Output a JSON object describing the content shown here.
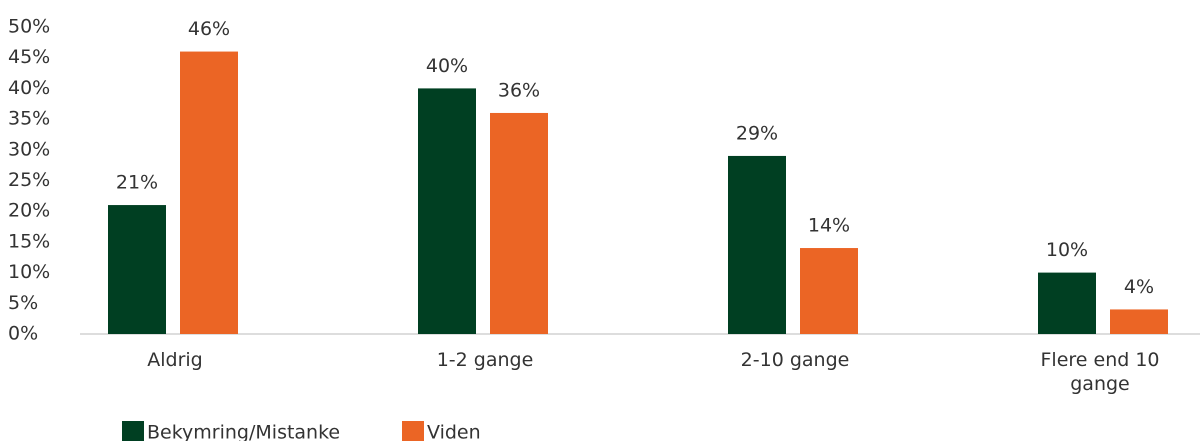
{
  "chart_data": {
    "type": "bar",
    "categories": [
      "Aldrig",
      "1-2 gange",
      "2-10 gange",
      "Flere end 10 gange"
    ],
    "series": [
      {
        "name": "Bekymring/Mistanke",
        "color": "#003f22",
        "values": [
          21,
          40,
          29,
          10
        ],
        "value_labels": [
          "21%",
          "40%",
          "29%",
          "10%"
        ]
      },
      {
        "name": "Viden",
        "color": "#eb6525",
        "values": [
          46,
          36,
          14,
          4
        ],
        "value_labels": [
          "46%",
          "36%",
          "14%",
          "4%"
        ]
      }
    ],
    "ylim": [
      0,
      50
    ],
    "yticks": [
      {
        "value": 0,
        "label": "0%"
      },
      {
        "value": 5,
        "label": "5%"
      },
      {
        "value": 10,
        "label": "10%"
      },
      {
        "value": 15,
        "label": "15%"
      },
      {
        "value": 20,
        "label": "20%"
      },
      {
        "value": 25,
        "label": "25%"
      },
      {
        "value": 30,
        "label": "30%"
      },
      {
        "value": 35,
        "label": "35%"
      },
      {
        "value": 40,
        "label": "40%"
      },
      {
        "value": 45,
        "label": "45%"
      },
      {
        "value": 50,
        "label": "50%"
      }
    ],
    "grid": false
  }
}
